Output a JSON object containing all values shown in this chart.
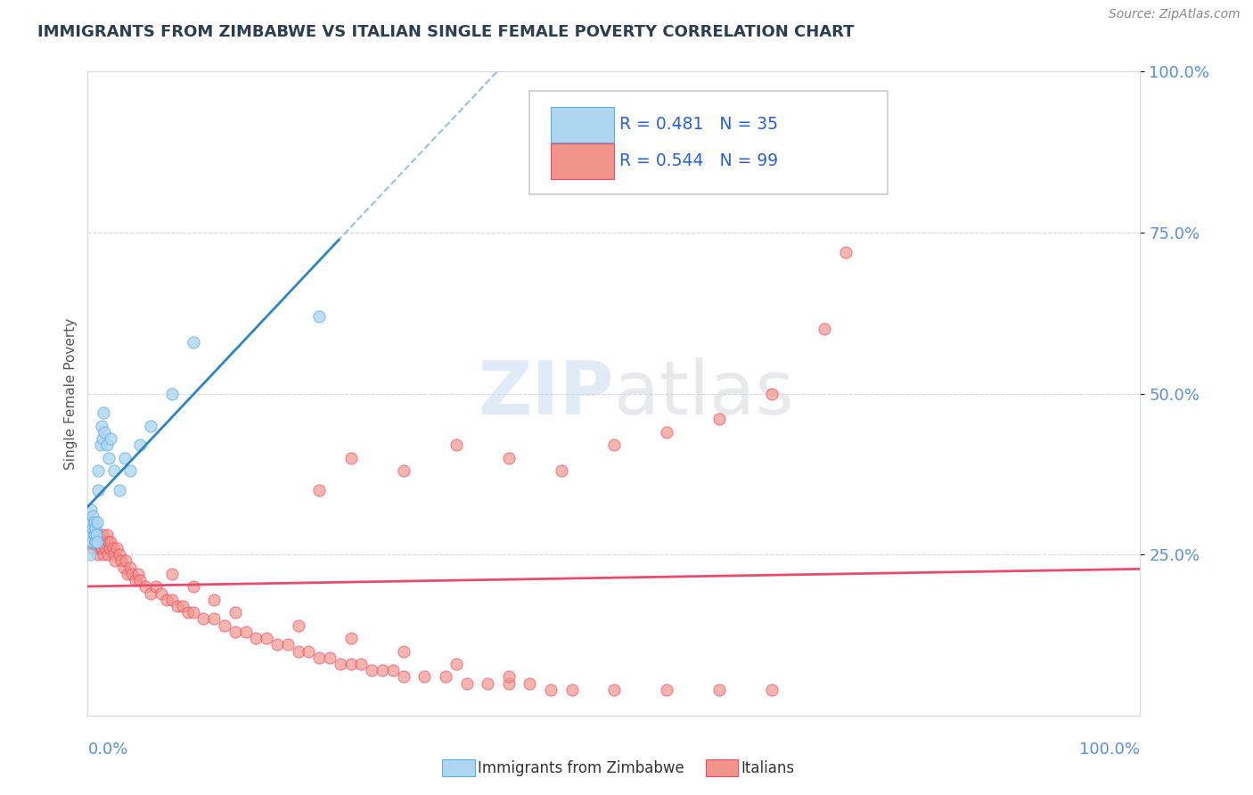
{
  "title": "IMMIGRANTS FROM ZIMBABWE VS ITALIAN SINGLE FEMALE POVERTY CORRELATION CHART",
  "source": "Source: ZipAtlas.com",
  "ylabel": "Single Female Poverty",
  "watermark_zip": "ZIP",
  "watermark_atlas": "atlas",
  "blue_color": "#AED6F1",
  "pink_color": "#F1948A",
  "blue_edge_color": "#5DADE2",
  "pink_edge_color": "#E74C6C",
  "blue_line_color": "#2E86C1",
  "pink_line_color": "#E74C6C",
  "axis_label_color": "#5B8DD9",
  "legend_text_color": "#2B5FD9",
  "pink_legend_text_color": "#E74C6C",
  "grid_color": "#D5D8DC",
  "title_color": "#2C3E50",
  "blue_R": 0.481,
  "blue_N": 35,
  "pink_R": 0.544,
  "pink_N": 99,
  "blue_x": [
    0.001,
    0.002,
    0.002,
    0.003,
    0.003,
    0.004,
    0.004,
    0.005,
    0.005,
    0.006,
    0.006,
    0.007,
    0.007,
    0.008,
    0.009,
    0.009,
    0.01,
    0.01,
    0.012,
    0.013,
    0.014,
    0.015,
    0.016,
    0.018,
    0.02,
    0.022,
    0.025,
    0.03,
    0.035,
    0.04,
    0.05,
    0.06,
    0.08,
    0.1,
    0.22
  ],
  "blue_y": [
    0.28,
    0.3,
    0.25,
    0.32,
    0.28,
    0.27,
    0.3,
    0.29,
    0.31,
    0.28,
    0.3,
    0.27,
    0.29,
    0.28,
    0.3,
    0.27,
    0.35,
    0.38,
    0.42,
    0.45,
    0.43,
    0.47,
    0.44,
    0.42,
    0.4,
    0.43,
    0.38,
    0.35,
    0.4,
    0.38,
    0.42,
    0.45,
    0.5,
    0.58,
    0.62
  ],
  "pink_x": [
    0.001,
    0.002,
    0.003,
    0.004,
    0.005,
    0.006,
    0.007,
    0.008,
    0.009,
    0.01,
    0.011,
    0.012,
    0.013,
    0.014,
    0.015,
    0.016,
    0.017,
    0.018,
    0.019,
    0.02,
    0.021,
    0.022,
    0.024,
    0.025,
    0.026,
    0.028,
    0.03,
    0.032,
    0.034,
    0.036,
    0.038,
    0.04,
    0.042,
    0.045,
    0.048,
    0.05,
    0.055,
    0.06,
    0.065,
    0.07,
    0.075,
    0.08,
    0.085,
    0.09,
    0.095,
    0.1,
    0.11,
    0.12,
    0.13,
    0.14,
    0.15,
    0.16,
    0.17,
    0.18,
    0.19,
    0.2,
    0.21,
    0.22,
    0.23,
    0.24,
    0.25,
    0.26,
    0.27,
    0.28,
    0.29,
    0.3,
    0.32,
    0.34,
    0.36,
    0.38,
    0.4,
    0.42,
    0.44,
    0.46,
    0.5,
    0.55,
    0.6,
    0.65,
    0.7,
    0.72,
    0.22,
    0.25,
    0.3,
    0.35,
    0.4,
    0.45,
    0.5,
    0.55,
    0.6,
    0.65,
    0.08,
    0.1,
    0.12,
    0.14,
    0.2,
    0.25,
    0.3,
    0.35,
    0.4
  ],
  "pink_y": [
    0.28,
    0.3,
    0.27,
    0.28,
    0.26,
    0.29,
    0.27,
    0.28,
    0.27,
    0.25,
    0.26,
    0.27,
    0.26,
    0.28,
    0.25,
    0.27,
    0.26,
    0.28,
    0.25,
    0.27,
    0.26,
    0.27,
    0.26,
    0.25,
    0.24,
    0.26,
    0.25,
    0.24,
    0.23,
    0.24,
    0.22,
    0.23,
    0.22,
    0.21,
    0.22,
    0.21,
    0.2,
    0.19,
    0.2,
    0.19,
    0.18,
    0.18,
    0.17,
    0.17,
    0.16,
    0.16,
    0.15,
    0.15,
    0.14,
    0.13,
    0.13,
    0.12,
    0.12,
    0.11,
    0.11,
    0.1,
    0.1,
    0.09,
    0.09,
    0.08,
    0.08,
    0.08,
    0.07,
    0.07,
    0.07,
    0.06,
    0.06,
    0.06,
    0.05,
    0.05,
    0.05,
    0.05,
    0.04,
    0.04,
    0.04,
    0.04,
    0.04,
    0.04,
    0.6,
    0.72,
    0.35,
    0.4,
    0.38,
    0.42,
    0.4,
    0.38,
    0.42,
    0.44,
    0.46,
    0.5,
    0.22,
    0.2,
    0.18,
    0.16,
    0.14,
    0.12,
    0.1,
    0.08,
    0.06
  ]
}
